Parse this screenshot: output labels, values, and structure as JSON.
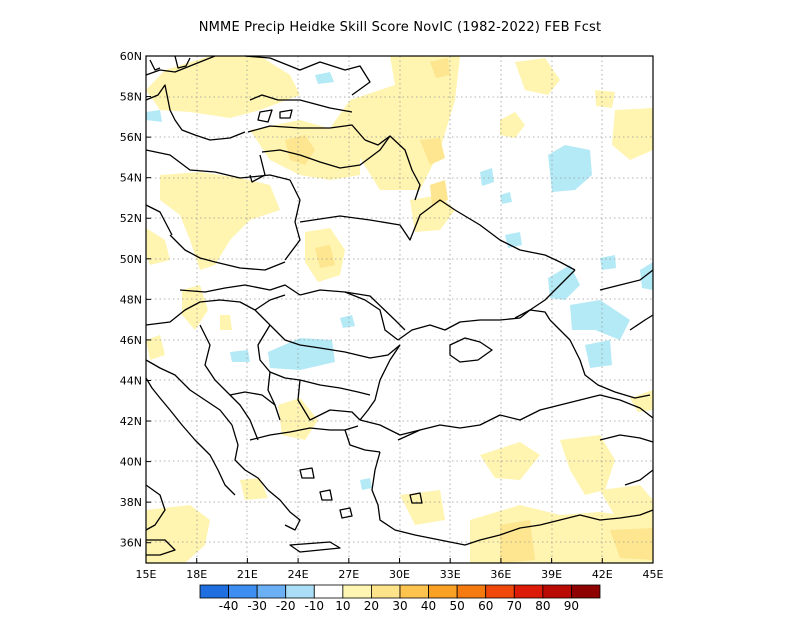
{
  "title": "NMME Precip Heidke Skill Score NovIC (1982-2022) FEB Fcst",
  "map": {
    "lon_range": [
      15,
      45
    ],
    "lat_range": [
      35,
      60
    ],
    "x_ticks": [
      "15E",
      "18E",
      "21E",
      "24E",
      "27E",
      "30E",
      "33E",
      "36E",
      "39E",
      "42E",
      "45E"
    ],
    "y_ticks": [
      "36N",
      "38N",
      "40N",
      "42N",
      "44N",
      "46N",
      "48N",
      "50N",
      "52N",
      "54N",
      "56N",
      "58N",
      "60N"
    ],
    "grid": "dotted"
  },
  "colorbar": {
    "colors": [
      "#1f6fe0",
      "#3d8ef0",
      "#6bb0f5",
      "#a9def6",
      "#ffffff",
      "#fff6b3",
      "#fde38a",
      "#fcc44e",
      "#f9a125",
      "#f57a10",
      "#f0480b",
      "#dd1c08",
      "#b90a04",
      "#8e0302"
    ],
    "labels": [
      "-40",
      "-30",
      "-20",
      "-10",
      "10",
      "20",
      "30",
      "40",
      "50",
      "60",
      "70",
      "80",
      "90"
    ]
  },
  "palette": {
    "light_yellow": "#fff4b0",
    "yellow": "#fde68f",
    "light_blue": "#b4e9f6",
    "border": "#000000",
    "grid": "#9a9a9a"
  }
}
